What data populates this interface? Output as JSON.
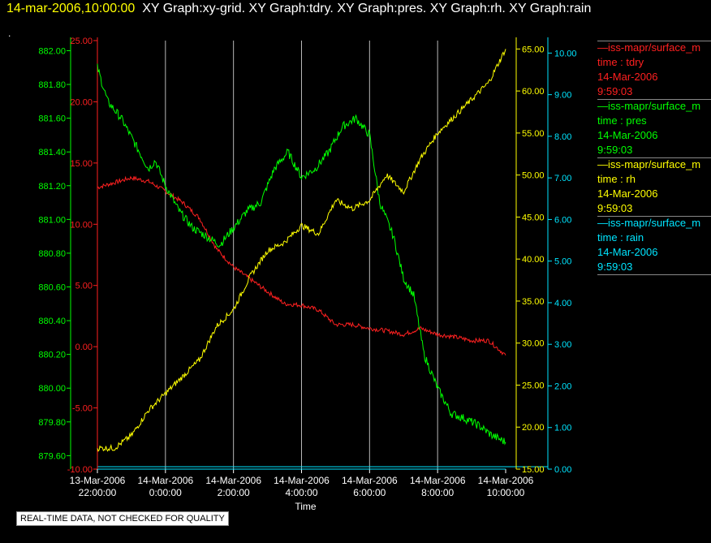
{
  "header": {
    "timestamp": "14-mar-2006,10:00:00",
    "titles": "XY Graph:xy-grid.  XY Graph:tdry.  XY Graph:pres.  XY Graph:rh.  XY Graph:rain"
  },
  "dot": ".",
  "footer_note": "REAL-TIME DATA, NOT CHECKED FOR QUALITY",
  "legend": [
    {
      "series": "—iss-mapr/surface_m",
      "var": "time : tdry",
      "date": "14-Mar-2006",
      "time": "9:59:03",
      "color": "#ff2020"
    },
    {
      "series": "—iss-mapr/surface_m",
      "var": "time : pres",
      "date": "14-Mar-2006",
      "time": "9:59:03",
      "color": "#00ff00"
    },
    {
      "series": "—iss-mapr/surface_m",
      "var": "time : rh",
      "date": "14-Mar-2006",
      "time": "9:59:03",
      "color": "#ffff00"
    },
    {
      "series": "—iss-mapr/surface_m",
      "var": "time : rain",
      "date": "14-Mar-2006",
      "time": "9:59:03",
      "color": "#00e5ff"
    }
  ],
  "chart_data": {
    "type": "line",
    "xlabel": "Time",
    "x_ticks": [
      [
        "13-Mar-2006",
        "22:00:00"
      ],
      [
        "14-Mar-2006",
        "0:00:00"
      ],
      [
        "14-Mar-2006",
        "2:00:00"
      ],
      [
        "14-Mar-2006",
        "4:00:00"
      ],
      [
        "14-Mar-2006",
        "6:00:00"
      ],
      [
        "14-Mar-2006",
        "8:00:00"
      ],
      [
        "14-Mar-2006",
        "10:00:00"
      ]
    ],
    "x_hours": [
      -2,
      0,
      2,
      4,
      6,
      8,
      10
    ],
    "xlim": [
      -2,
      10
    ],
    "axes": {
      "tdry": {
        "color": "#ff2020",
        "ylim": [
          -10,
          25
        ],
        "ticks": [
          "-10.00",
          "-5.00",
          "0.00",
          "5.00",
          "10.00",
          "15.00",
          "20.00",
          "25.00"
        ]
      },
      "pres": {
        "color": "#00ff00",
        "ylim": [
          879.52,
          882.06
        ],
        "ticks": [
          "879.60",
          "879.80",
          "880.00",
          "880.20",
          "880.40",
          "880.60",
          "880.80",
          "881.00",
          "881.20",
          "881.40",
          "881.60",
          "881.80",
          "882.00"
        ]
      },
      "rh": {
        "color": "#ffff00",
        "ylim": [
          15,
          66
        ],
        "ticks": [
          "15.00",
          "20.00",
          "25.00",
          "30.00",
          "35.00",
          "40.00",
          "45.00",
          "50.00",
          "55.00",
          "60.00",
          "65.00"
        ]
      },
      "rain": {
        "color": "#00e5ff",
        "ylim": [
          0,
          10.3
        ],
        "ticks": [
          "0.00",
          "1.00",
          "2.00",
          "3.00",
          "4.00",
          "5.00",
          "6.00",
          "7.00",
          "8.00",
          "9.00",
          "10.00"
        ]
      }
    },
    "series": [
      {
        "key": "tdry",
        "hours": [
          -2,
          -1.5,
          -1,
          -0.5,
          0,
          0.5,
          1,
          1.5,
          2,
          2.5,
          3,
          3.5,
          4,
          4.5,
          5,
          5.5,
          6,
          6.5,
          7,
          7.5,
          8,
          8.5,
          9,
          9.5,
          10
        ],
        "values": [
          13,
          13.4,
          13.8,
          13.5,
          12.7,
          11.8,
          10.5,
          8,
          6.5,
          5.5,
          4.5,
          3.5,
          3.4,
          3.0,
          1.8,
          1.8,
          1.5,
          1.3,
          1.0,
          1.5,
          1.0,
          0.8,
          0.5,
          0.5,
          -0.7
        ]
      },
      {
        "key": "pres",
        "hours": [
          -2,
          -1.7,
          -1.3,
          -0.9,
          -0.5,
          -0.3,
          0,
          0.4,
          0.8,
          1.2,
          1.6,
          2.0,
          2.4,
          2.8,
          3.2,
          3.6,
          4.0,
          4.4,
          4.8,
          5.2,
          5.6,
          6.0,
          6.3,
          6.7,
          7.0,
          7.3,
          7.6,
          8.0,
          8.4,
          8.8,
          9.2,
          9.6,
          10
        ],
        "values": [
          881.9,
          881.7,
          881.6,
          881.45,
          881.3,
          881.35,
          881.2,
          881.05,
          880.95,
          880.9,
          880.85,
          880.95,
          881.05,
          881.1,
          881.3,
          881.4,
          881.25,
          881.3,
          881.4,
          881.55,
          881.6,
          881.5,
          881.1,
          880.9,
          880.65,
          880.55,
          880.2,
          880.0,
          879.85,
          879.82,
          879.78,
          879.72,
          879.68
        ]
      },
      {
        "key": "rh",
        "hours": [
          -2,
          -1.5,
          -1,
          -0.5,
          0,
          0.5,
          1,
          1.5,
          2,
          2.5,
          3,
          3.5,
          4,
          4.5,
          5,
          5.5,
          6,
          6.5,
          7,
          7.5,
          8,
          8.5,
          9,
          9.5,
          10
        ],
        "values": [
          17.5,
          17.5,
          19,
          22,
          24,
          26,
          28,
          32,
          34,
          38,
          41,
          42,
          44,
          43,
          47,
          46,
          47,
          50,
          48,
          52,
          55,
          57,
          59,
          61,
          65
        ]
      },
      {
        "key": "rain",
        "hours": [
          -2,
          10
        ],
        "values": [
          0,
          0
        ]
      }
    ]
  }
}
